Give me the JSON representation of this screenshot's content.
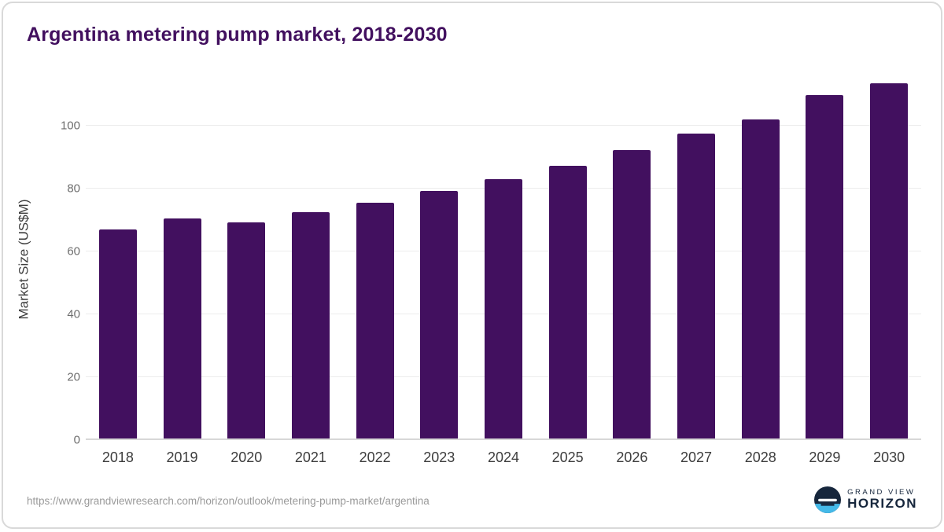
{
  "title": "Argentina metering pump market, 2018-2030",
  "footer": {
    "source_url": "https://www.grandviewresearch.com/horizon/outlook/metering-pump-market/argentina",
    "logo_top": "GRAND VIEW",
    "logo_bottom": "HORIZON"
  },
  "colors": {
    "bar": "#42105f",
    "title": "#42105f",
    "gridline": "#ececec",
    "axis_text": "#6e6e6e",
    "logo_navy": "#16263c",
    "logo_blue": "#45b9e8"
  },
  "chart_data": {
    "type": "bar",
    "title": "Argentina metering pump market, 2018-2030",
    "xlabel": "",
    "ylabel": "Market Size (US$M)",
    "categories": [
      "2018",
      "2019",
      "2020",
      "2021",
      "2022",
      "2023",
      "2024",
      "2025",
      "2026",
      "2027",
      "2028",
      "2029",
      "2030"
    ],
    "values": [
      66.9,
      70.6,
      69.3,
      72.4,
      75.5,
      79.2,
      83.0,
      87.3,
      92.2,
      97.6,
      101.9,
      109.8,
      113.4
    ],
    "ylim": [
      0,
      115
    ],
    "yticks": [
      0,
      20,
      40,
      60,
      80,
      100
    ],
    "grid": true,
    "legend": "none",
    "bar_color": "#42105f"
  }
}
